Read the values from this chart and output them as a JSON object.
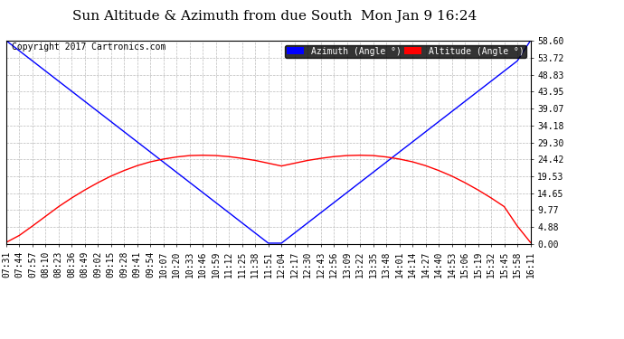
{
  "title": "Sun Altitude & Azimuth from due South  Mon Jan 9 16:24",
  "copyright": "Copyright 2017 Cartronics.com",
  "legend_labels": [
    "Azimuth (Angle °)",
    "Altitude (Angle °)"
  ],
  "yticks": [
    0.0,
    4.88,
    9.77,
    14.65,
    19.53,
    24.42,
    29.3,
    34.18,
    39.07,
    43.95,
    48.83,
    53.72,
    58.6
  ],
  "ymax": 58.6,
  "ymin": 0.0,
  "background_color": "#ffffff",
  "plot_bg_color": "#ffffff",
  "grid_color": "#bbbbbb",
  "azimuth_color": "blue",
  "altitude_color": "red",
  "x_times": [
    "07:31",
    "07:44",
    "07:57",
    "08:10",
    "08:23",
    "08:36",
    "08:49",
    "09:02",
    "09:15",
    "09:28",
    "09:41",
    "09:54",
    "10:07",
    "10:20",
    "10:33",
    "10:46",
    "10:59",
    "11:12",
    "11:25",
    "11:38",
    "11:51",
    "12:04",
    "12:17",
    "12:30",
    "12:43",
    "12:56",
    "13:09",
    "13:22",
    "13:35",
    "13:48",
    "14:01",
    "14:14",
    "14:27",
    "14:40",
    "14:53",
    "15:06",
    "15:19",
    "15:32",
    "15:45",
    "15:58",
    "16:11"
  ],
  "azimuth_values": [
    58.6,
    55.68,
    52.77,
    49.85,
    46.93,
    44.02,
    41.1,
    38.18,
    35.27,
    32.35,
    29.43,
    26.52,
    23.6,
    20.68,
    17.77,
    14.85,
    11.93,
    9.02,
    6.1,
    3.18,
    0.27,
    0.27,
    3.18,
    6.1,
    9.02,
    11.93,
    14.85,
    17.77,
    20.68,
    23.6,
    26.52,
    29.43,
    32.35,
    35.27,
    38.18,
    41.1,
    44.02,
    46.93,
    49.85,
    52.77,
    58.6
  ],
  "altitude_values": [
    0.5,
    2.5,
    5.2,
    8.0,
    10.8,
    13.3,
    15.6,
    17.7,
    19.6,
    21.2,
    22.6,
    23.7,
    24.5,
    25.1,
    25.5,
    25.6,
    25.5,
    25.2,
    24.7,
    24.1,
    23.3,
    22.5,
    23.3,
    24.1,
    24.7,
    25.2,
    25.5,
    25.6,
    25.5,
    25.1,
    24.5,
    23.7,
    22.6,
    21.2,
    19.6,
    17.7,
    15.6,
    13.3,
    10.8,
    5.2,
    0.5
  ],
  "title_fontsize": 11,
  "tick_fontsize": 7,
  "copyright_fontsize": 7
}
